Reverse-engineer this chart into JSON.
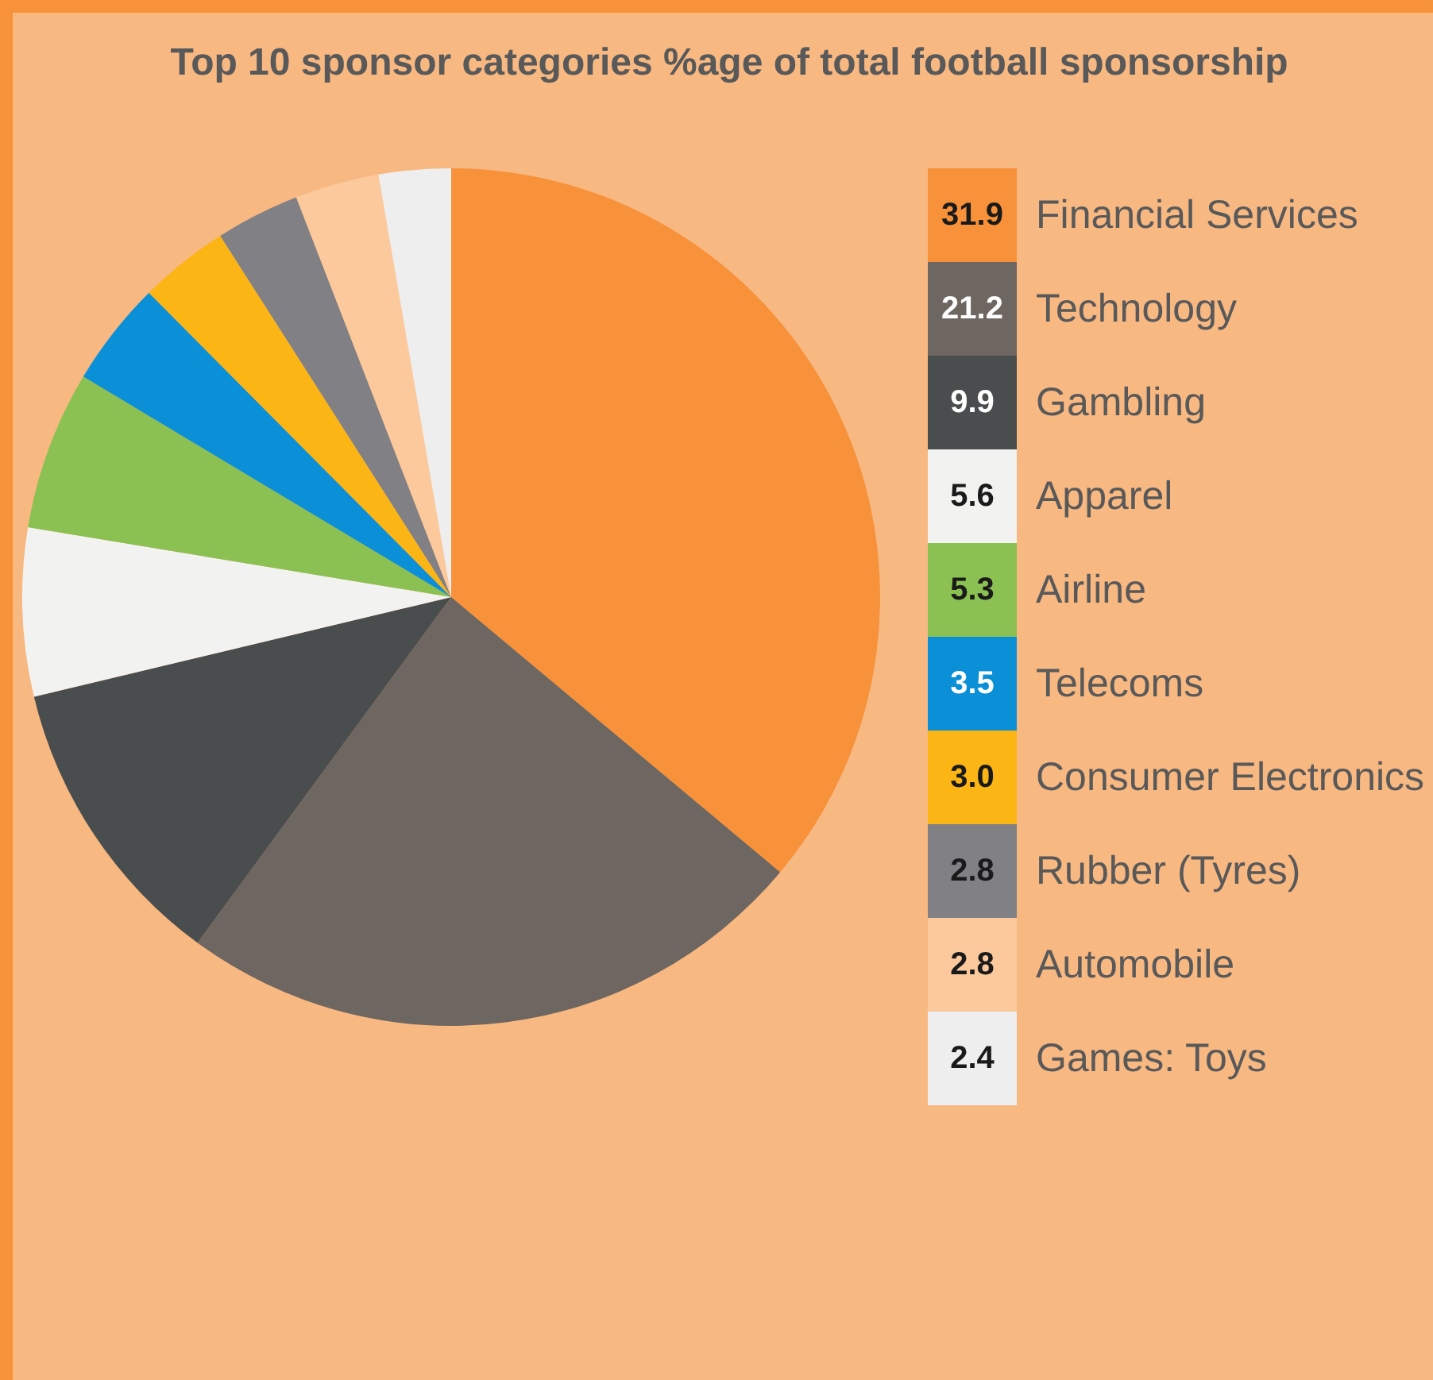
{
  "chart_data": {
    "type": "pie",
    "title": "Top 10 sponsor categories %age of total football sponsorship",
    "categories": [
      "Financial Services",
      "Technology",
      "Gambling",
      "Apparel",
      "Airline",
      "Telecoms",
      "Consumer Electronics",
      "Rubber (Tyres)",
      "Automobile",
      "Games: Toys"
    ],
    "values": [
      31.9,
      21.2,
      9.9,
      5.6,
      5.3,
      3.5,
      3.0,
      2.8,
      2.8,
      2.4
    ],
    "colors": [
      "#f7913a",
      "#6e6660",
      "#4a4d4e",
      "#f2f2f0",
      "#8bc152",
      "#0b8fd6",
      "#fbb515",
      "#818085",
      "#fbc99c",
      "#eeeeee"
    ],
    "value_labels": [
      "31.9",
      "21.2",
      "9.9",
      "5.6",
      "5.3",
      "3.5",
      "3.0",
      "2.8",
      "2.8",
      "2.4"
    ],
    "legend": "right"
  }
}
